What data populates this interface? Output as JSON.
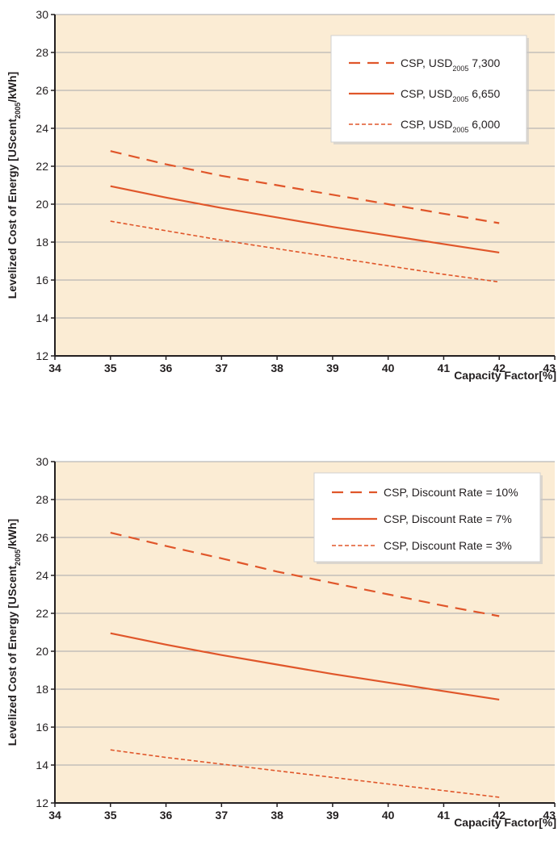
{
  "colors": {
    "plot_background": "#fbecd4",
    "line": "#e0562a",
    "grid": "#a7a9ac",
    "axis": "#231f20"
  },
  "chart_data": [
    {
      "type": "line",
      "title": "",
      "xlabel": "Capacity Factor[%]",
      "ylabel": {
        "prefix": "Levelized Cost of Energy [UScent",
        "subscript": "2005",
        "suffix": "/kWh]"
      },
      "xlim": [
        34,
        43
      ],
      "ylim": [
        12,
        30
      ],
      "x_ticks": [
        "34",
        "35",
        "36",
        "37",
        "38",
        "39",
        "40",
        "41",
        "42",
        "43"
      ],
      "y_ticks": [
        "12",
        "14",
        "16",
        "18",
        "20",
        "22",
        "24",
        "26",
        "28",
        "30"
      ],
      "grid": "horizontal",
      "legend_position": "top-right",
      "series": [
        {
          "label": {
            "prefix": "CSP, USD",
            "subscript": "2005",
            "suffix": " 7,300"
          },
          "style": "dashed",
          "x": [
            35,
            36,
            37,
            38,
            39,
            40,
            41,
            42
          ],
          "values": [
            22.8,
            22.1,
            21.5,
            21.0,
            20.5,
            20.0,
            19.5,
            19.0
          ]
        },
        {
          "label": {
            "prefix": "CSP, USD",
            "subscript": "2005",
            "suffix": " 6,650"
          },
          "style": "solid",
          "x": [
            35,
            36,
            37,
            38,
            39,
            40,
            41,
            42
          ],
          "values": [
            20.95,
            20.35,
            19.8,
            19.3,
            18.8,
            18.35,
            17.9,
            17.45
          ]
        },
        {
          "label": {
            "prefix": "CSP, USD",
            "subscript": "2005",
            "suffix": " 6,000"
          },
          "style": "dotted",
          "x": [
            35,
            36,
            37,
            38,
            39,
            40,
            41,
            42
          ],
          "values": [
            19.1,
            18.6,
            18.1,
            17.65,
            17.2,
            16.75,
            16.3,
            15.9
          ]
        }
      ]
    },
    {
      "type": "line",
      "title": "",
      "xlabel": "Capacity Factor[%]",
      "ylabel": {
        "prefix": "Levelized Cost of Energy [UScent",
        "subscript": "2005",
        "suffix": "/kWh]"
      },
      "xlim": [
        34,
        43
      ],
      "ylim": [
        12,
        30
      ],
      "x_ticks": [
        "34",
        "35",
        "36",
        "37",
        "38",
        "39",
        "40",
        "41",
        "42",
        "43"
      ],
      "y_ticks": [
        "12",
        "14",
        "16",
        "18",
        "20",
        "22",
        "24",
        "26",
        "28",
        "30"
      ],
      "grid": "horizontal",
      "legend_position": "top-right",
      "series": [
        {
          "label": {
            "prefix": "CSP, Discount Rate = 10%",
            "subscript": "",
            "suffix": ""
          },
          "style": "dashed",
          "x": [
            35,
            36,
            37,
            38,
            39,
            40,
            41,
            42
          ],
          "values": [
            26.25,
            25.55,
            24.9,
            24.2,
            23.6,
            23.0,
            22.4,
            21.85
          ]
        },
        {
          "label": {
            "prefix": "CSP, Discount Rate = 7%",
            "subscript": "",
            "suffix": ""
          },
          "style": "solid",
          "x": [
            35,
            36,
            37,
            38,
            39,
            40,
            41,
            42
          ],
          "values": [
            20.95,
            20.35,
            19.8,
            19.3,
            18.8,
            18.35,
            17.9,
            17.45
          ]
        },
        {
          "label": {
            "prefix": "CSP, Discount Rate = 3%",
            "subscript": "",
            "suffix": ""
          },
          "style": "dotted",
          "x": [
            35,
            36,
            37,
            38,
            39,
            40,
            41,
            42
          ],
          "values": [
            14.8,
            14.4,
            14.05,
            13.7,
            13.35,
            13.0,
            12.65,
            12.3
          ]
        }
      ]
    }
  ]
}
